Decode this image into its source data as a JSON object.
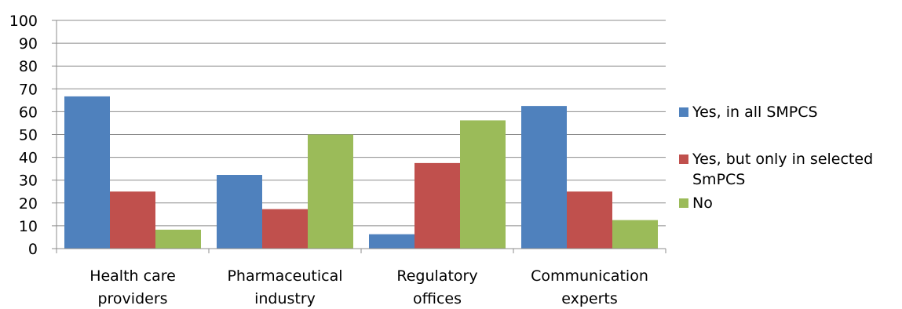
{
  "chart_data": {
    "type": "bar",
    "categories": [
      [
        "Health care",
        "providers"
      ],
      [
        "Pharmaceutical",
        "industry"
      ],
      [
        "Regulatory",
        "offices"
      ],
      [
        "Communication",
        "experts"
      ]
    ],
    "series": [
      {
        "name": "Yes, in all SMPCS",
        "color": "#4F81BD",
        "values": [
          66.7,
          32.3,
          6.3,
          62.5
        ]
      },
      {
        "name": "Yes, but only in selected SmPCS",
        "color": "#C0504D",
        "values": [
          25,
          17.3,
          37.5,
          25
        ]
      },
      {
        "name": "No",
        "color": "#9BBB59",
        "values": [
          8.3,
          50,
          56.2,
          12.5
        ]
      }
    ],
    "ylim": [
      0,
      100
    ],
    "yticks": [
      0,
      10,
      20,
      30,
      40,
      50,
      60,
      70,
      80,
      90,
      100
    ],
    "grid": true,
    "legend_position": "right"
  }
}
